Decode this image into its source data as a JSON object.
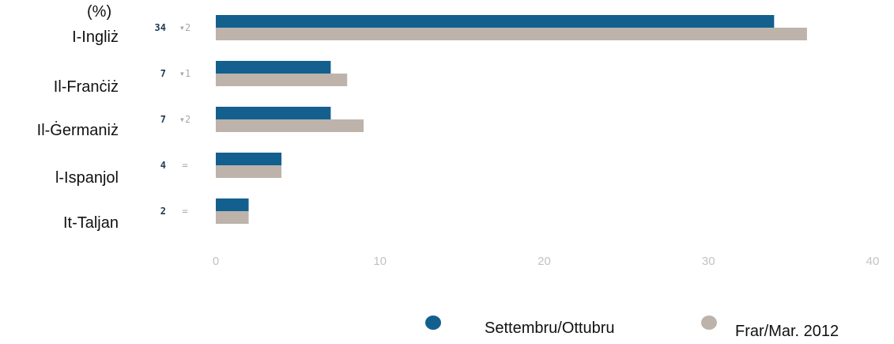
{
  "chart_data": {
    "type": "bar",
    "orientation": "horizontal",
    "unit_label": "(%)",
    "categories": [
      "I-Ingliż",
      "Il-Franċiż",
      "Il-Ġermaniż",
      "l-Ispanjol",
      "It-Taljan"
    ],
    "series": [
      {
        "name": "Settembru/Ottubru",
        "color": "#13608f",
        "values": [
          34,
          7,
          7,
          4,
          2
        ]
      },
      {
        "name": "Frar/Mar. 2012",
        "color": "#bdb3ab",
        "values": [
          36,
          8,
          9,
          4,
          2
        ]
      }
    ],
    "value_labels": [
      "34",
      "7",
      "7",
      "4",
      "2"
    ],
    "change_labels": [
      "▾2",
      "▾1",
      "▾2",
      "=",
      "="
    ],
    "xlim": [
      0,
      40
    ],
    "xticks": [
      0,
      10,
      20,
      30,
      40
    ],
    "grid": false,
    "legend_position": "bottom-right"
  },
  "colors": {
    "value_label": "#1f3b57",
    "change_label": "#a8a8a8",
    "tick_label": "#c2c2c2"
  }
}
